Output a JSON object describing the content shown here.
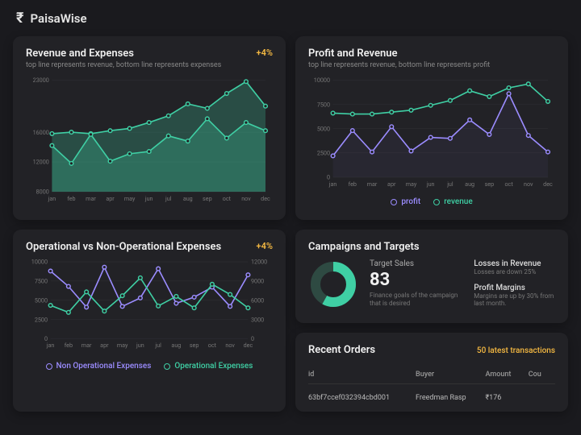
{
  "brand": "PaisaWise",
  "months": [
    "jan",
    "feb",
    "mar",
    "apr",
    "may",
    "jun",
    "jul",
    "aug",
    "sep",
    "oct",
    "nov",
    "dec"
  ],
  "colors": {
    "teal": "#3fcfa4",
    "tealFill": "rgba(63,207,164,0.25)",
    "purple": "#9b8cff",
    "purpleFill": "rgba(155,140,255,0.05)",
    "grid": "#333338",
    "axis": "#777",
    "accent": "#f5b942",
    "bg": "#222226",
    "donutBg": "#2e4a42"
  },
  "revExp": {
    "title": "Revenue and Expenses",
    "sub": "top line represents revenue, bottom line represents expenses",
    "badge": "+4%",
    "ylim": [
      8000,
      23000
    ],
    "yticks": [
      8000,
      12000,
      16000,
      23000
    ],
    "revenue": [
      15800,
      16000,
      15800,
      16200,
      16500,
      17300,
      18200,
      19800,
      19200,
      21200,
      22800,
      19500
    ],
    "expenses": [
      14200,
      11800,
      15700,
      12100,
      13100,
      13400,
      15500,
      14800,
      17800,
      15200,
      17300,
      16200
    ]
  },
  "profitRev": {
    "title": "Profit and Revenue",
    "sub": "top line represents revenue, bottom line represents profit",
    "ylim": [
      0,
      10000
    ],
    "yticks": [
      0,
      2500,
      5000,
      7500,
      10000
    ],
    "revenue": [
      6600,
      6500,
      6500,
      6700,
      6900,
      7400,
      7900,
      8900,
      8300,
      9200,
      9600,
      7800
    ],
    "profit": [
      2200,
      4800,
      2600,
      5200,
      2700,
      4100,
      4000,
      5900,
      4400,
      8600,
      4300,
      2600
    ],
    "legend": {
      "profit": "profit",
      "revenue": "revenue"
    }
  },
  "opExp": {
    "title": "Operational vs Non-Operational Expenses",
    "badge": "+4%",
    "ylimL": [
      0,
      10000
    ],
    "yticksL": [
      0,
      2500,
      5000,
      7500,
      10000
    ],
    "ylimR": [
      0,
      12000
    ],
    "yticksR": [
      0,
      3000,
      6000,
      9000,
      12000
    ],
    "nonop": [
      8800,
      6800,
      4100,
      9300,
      4200,
      5300,
      9100,
      4600,
      5400,
      6700,
      4200,
      8300
    ],
    "op": [
      5200,
      4100,
      7300,
      4300,
      6700,
      9500,
      5100,
      6600,
      4800,
      8500,
      6900,
      4800
    ],
    "legend": {
      "nonop": "Non Operational Expenses",
      "op": "Operational Expenses"
    }
  },
  "campaigns": {
    "title": "Campaigns and Targets",
    "targetLabel": "Target Sales",
    "targetValue": "83",
    "targetDesc": "Finance goals of the campaign that is desired",
    "donutPct": 0.58,
    "metrics": [
      {
        "title": "Losses in Revenue",
        "sub": "Losses are down 25%"
      },
      {
        "title": "Profit Margins",
        "sub": "Margins are up by 30% from last month."
      }
    ]
  },
  "orders": {
    "title": "Recent Orders",
    "link": "50 latest transactions",
    "columns": [
      "id",
      "Buyer",
      "Amount",
      "Cou"
    ],
    "rows": [
      [
        "63bf7ccef032394cbd001",
        "Freedman Rasp",
        "₹176",
        ""
      ]
    ]
  }
}
